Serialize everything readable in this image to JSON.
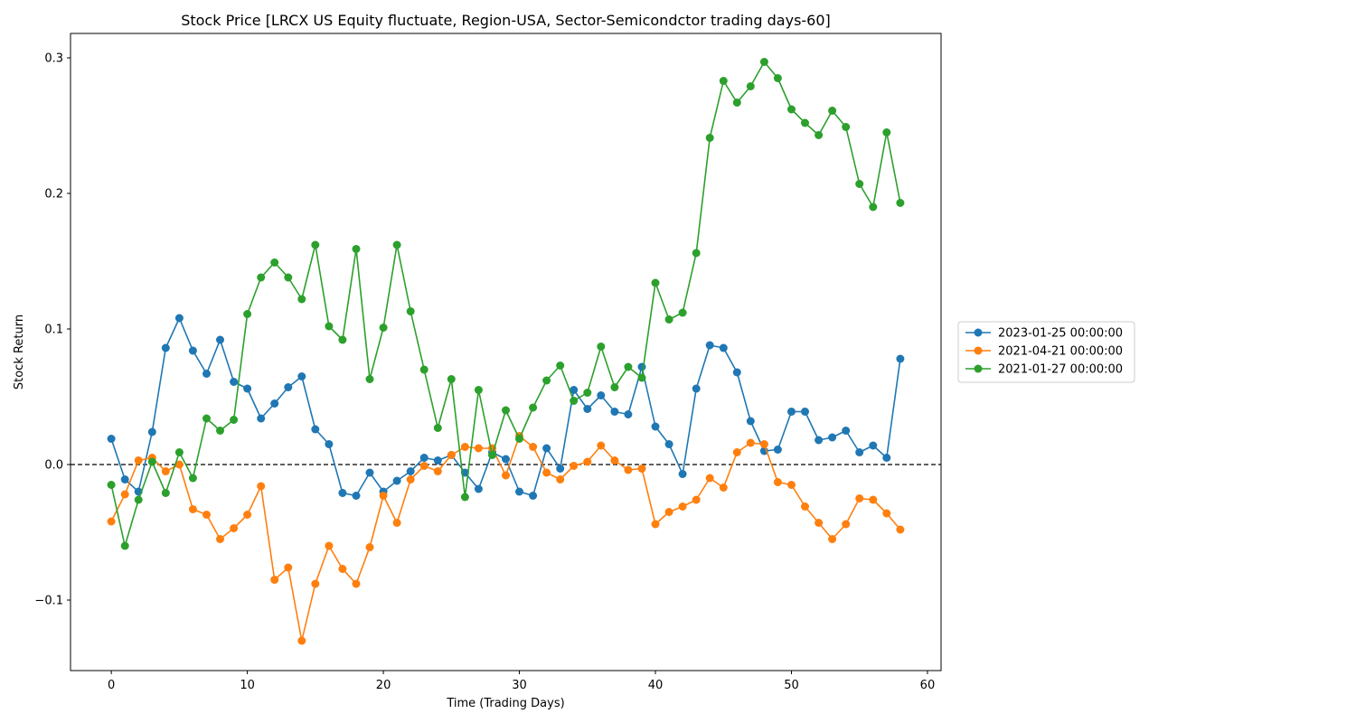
{
  "chart_data": {
    "type": "line",
    "title": "Stock Price [LRCX US Equity fluctuate, Region-USA, Sector-Semicondctor trading days-60]",
    "xlabel": "Time (Trading Days)",
    "ylabel": "Stock Return",
    "xlim": [
      -3,
      61
    ],
    "ylim": [
      -0.152,
      0.318
    ],
    "x_ticks": [
      0,
      10,
      20,
      30,
      40,
      50,
      60
    ],
    "y_ticks": [
      -0.1,
      0.0,
      0.1,
      0.2,
      0.3
    ],
    "x_tick_labels": [
      "0",
      "10",
      "20",
      "30",
      "40",
      "50",
      "60"
    ],
    "y_tick_labels": [
      "−0.1",
      "0.0",
      "0.1",
      "0.2",
      "0.3"
    ],
    "grid": false,
    "reference_line": {
      "y": 0,
      "style": "dashed",
      "color": "#000000"
    },
    "legend_position": "outside-right",
    "x": [
      0,
      1,
      2,
      3,
      4,
      5,
      6,
      7,
      8,
      9,
      10,
      11,
      12,
      13,
      14,
      15,
      16,
      17,
      18,
      19,
      20,
      21,
      22,
      23,
      24,
      25,
      26,
      27,
      28,
      29,
      30,
      31,
      32,
      33,
      34,
      35,
      36,
      37,
      38,
      39,
      40,
      41,
      42,
      43,
      44,
      45,
      46,
      47,
      48,
      49,
      50,
      51,
      52,
      53,
      54,
      55,
      56,
      57,
      58
    ],
    "series": [
      {
        "name": "2023-01-25 00:00:00",
        "color": "#1f77b4",
        "values": [
          0.019,
          -0.011,
          -0.02,
          0.024,
          0.086,
          0.108,
          0.084,
          0.067,
          0.092,
          0.061,
          0.056,
          0.034,
          0.045,
          0.057,
          0.065,
          0.026,
          0.015,
          -0.021,
          -0.023,
          -0.006,
          -0.02,
          -0.012,
          -0.005,
          0.005,
          0.003,
          0.007,
          -0.006,
          -0.018,
          0.009,
          0.004,
          -0.02,
          -0.023,
          0.012,
          -0.003,
          0.055,
          0.041,
          0.051,
          0.039,
          0.037,
          0.072,
          0.028,
          0.015,
          -0.007,
          0.056,
          0.088,
          0.086,
          0.068,
          0.032,
          0.01,
          0.011,
          0.039,
          0.039,
          0.018,
          0.02,
          0.025,
          0.009,
          0.014,
          0.005,
          0.078
        ]
      },
      {
        "name": "2021-04-21 00:00:00",
        "color": "#ff7f0e",
        "values": [
          -0.042,
          -0.022,
          0.003,
          0.005,
          -0.005,
          0.0,
          -0.033,
          -0.037,
          -0.055,
          -0.047,
          -0.037,
          -0.016,
          -0.085,
          -0.076,
          -0.13,
          -0.088,
          -0.06,
          -0.077,
          -0.088,
          -0.061,
          -0.023,
          -0.043,
          -0.011,
          -0.001,
          -0.005,
          0.007,
          0.013,
          0.012,
          0.012,
          -0.008,
          0.021,
          0.013,
          -0.006,
          -0.011,
          -0.001,
          0.002,
          0.014,
          0.003,
          -0.004,
          -0.003,
          -0.044,
          -0.035,
          -0.031,
          -0.026,
          -0.01,
          -0.017,
          0.009,
          0.016,
          0.015,
          -0.013,
          -0.015,
          -0.031,
          -0.043,
          -0.055,
          -0.044,
          -0.025,
          -0.026,
          -0.036,
          -0.048
        ]
      },
      {
        "name": "2021-01-27 00:00:00",
        "color": "#2ca02c",
        "values": [
          -0.015,
          -0.06,
          -0.026,
          0.002,
          -0.021,
          0.009,
          -0.01,
          0.034,
          0.025,
          0.033,
          0.111,
          0.138,
          0.149,
          0.138,
          0.122,
          0.162,
          0.102,
          0.092,
          0.159,
          0.063,
          0.101,
          0.162,
          0.113,
          0.07,
          0.027,
          0.063,
          -0.024,
          0.055,
          0.007,
          0.04,
          0.019,
          0.042,
          0.062,
          0.073,
          0.047,
          0.053,
          0.087,
          0.057,
          0.072,
          0.064,
          0.134,
          0.107,
          0.112,
          0.156,
          0.241,
          0.283,
          0.267,
          0.279,
          0.297,
          0.285,
          0.262,
          0.252,
          0.243,
          0.261,
          0.249,
          0.207,
          0.19,
          0.245,
          0.193
        ]
      }
    ]
  }
}
